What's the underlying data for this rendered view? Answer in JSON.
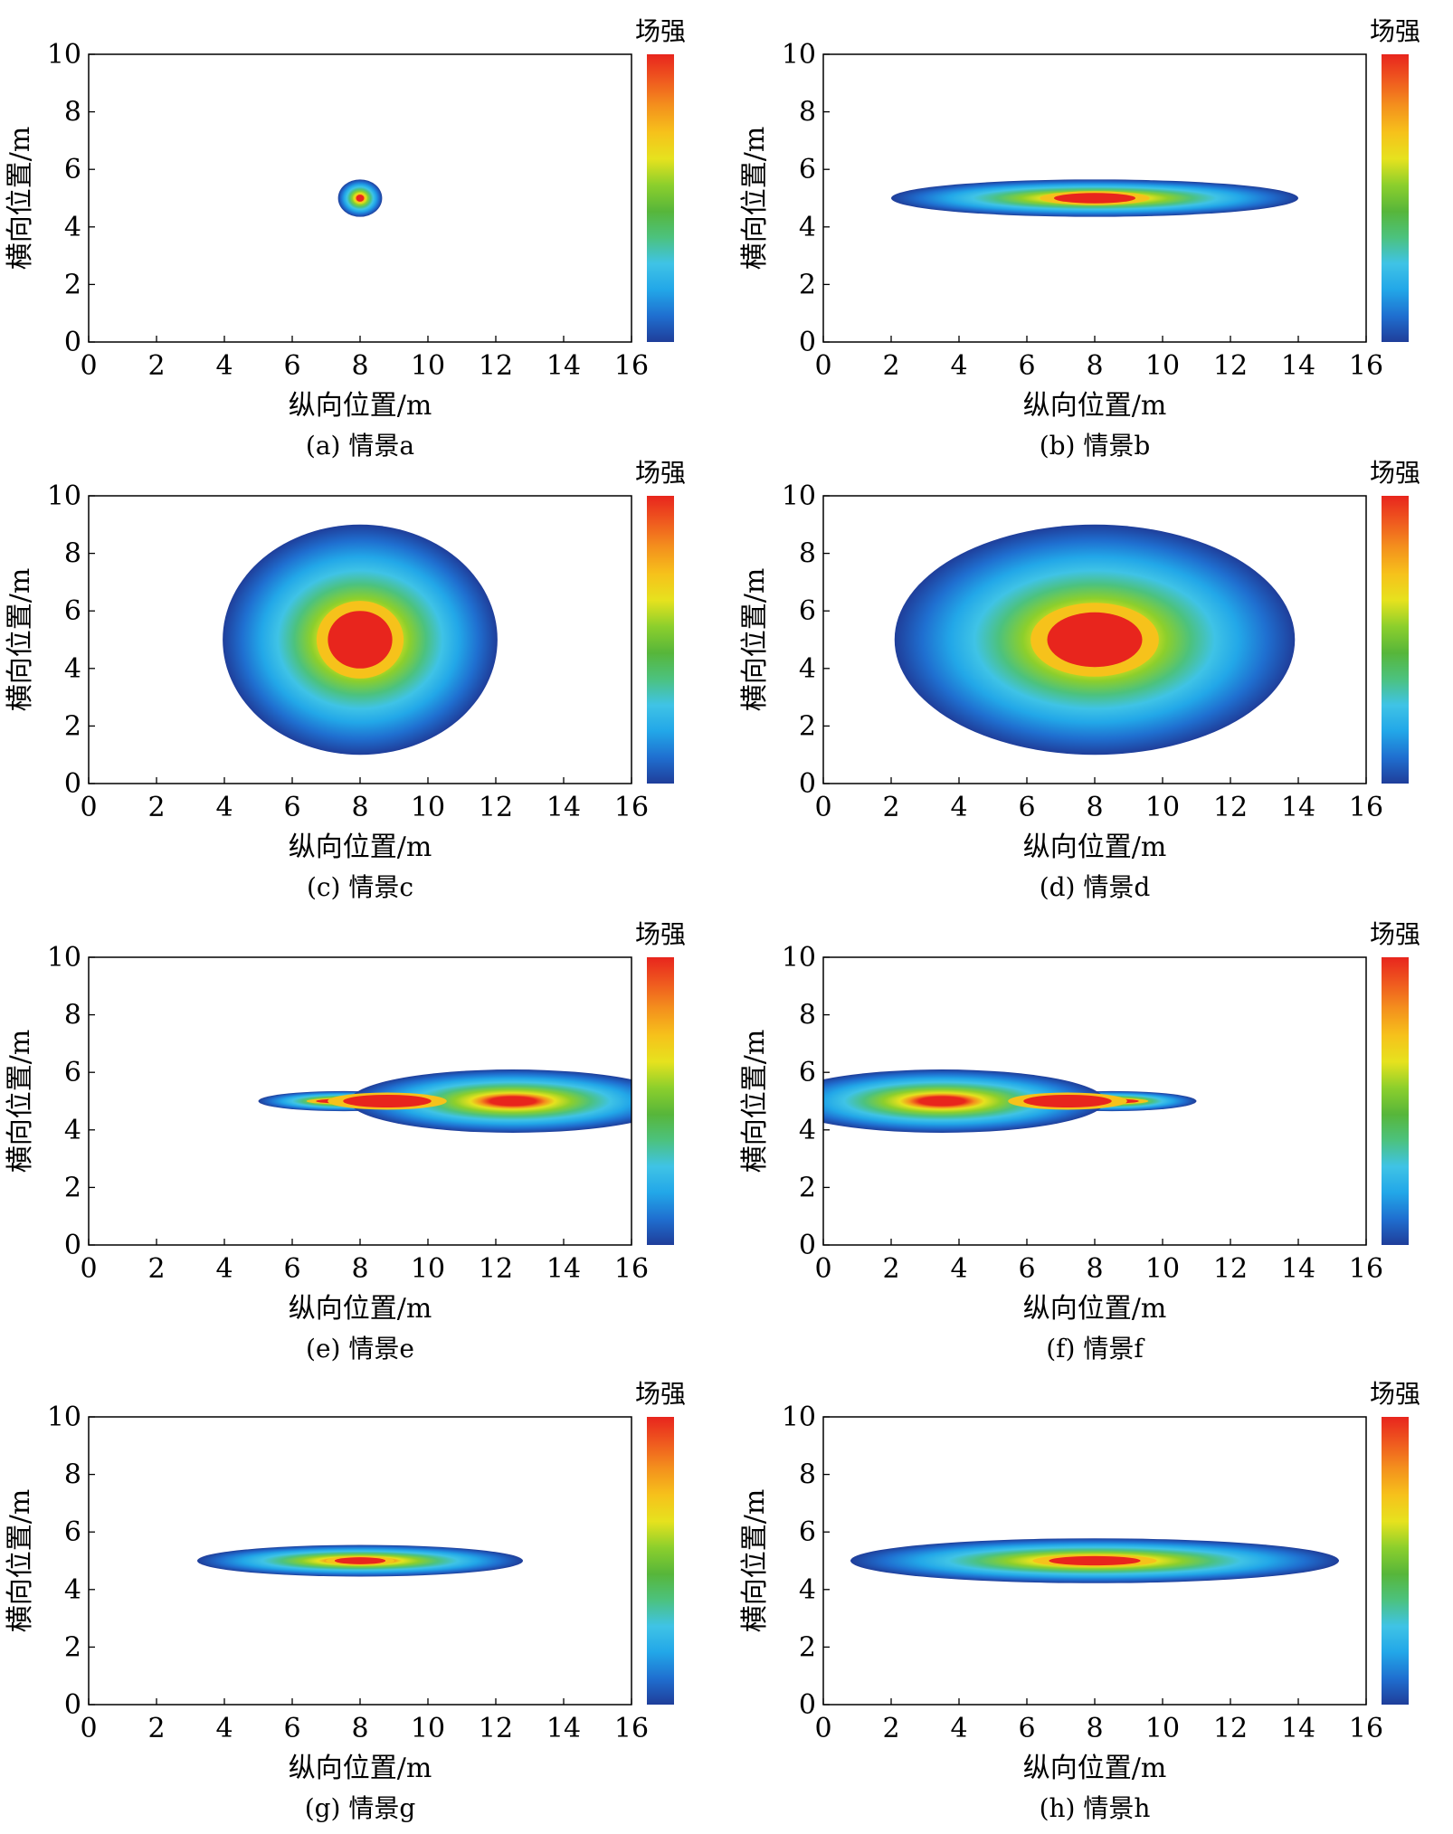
{
  "colorbar_colors": [
    "#1f3e9a",
    "#1f6fd0",
    "#22a7e8",
    "#3fc3e6",
    "#4cc27e",
    "#57b63a",
    "#8ccf2c",
    "#e6e21e",
    "#f6c21b",
    "#f4921d",
    "#ef5a1f",
    "#e8251d"
  ],
  "panels": [
    {
      "caption": "(a) 情景a",
      "xlabel": "纵向位置/m",
      "ylabel": "横向位置/m",
      "colorbar_label": "场强",
      "x_ticks": [
        "0",
        "2",
        "4",
        "6",
        "8",
        "10",
        "12",
        "14",
        "16"
      ],
      "y_ticks": [
        "0",
        "2",
        "4",
        "6",
        "8",
        "10"
      ]
    },
    {
      "caption": "(b) 情景b",
      "xlabel": "纵向位置/m",
      "ylabel": "横向位置/m",
      "colorbar_label": "场强",
      "x_ticks": [
        "0",
        "2",
        "4",
        "6",
        "8",
        "10",
        "12",
        "14",
        "16"
      ],
      "y_ticks": [
        "0",
        "2",
        "4",
        "6",
        "8",
        "10"
      ]
    },
    {
      "caption": "(c) 情景c",
      "xlabel": "纵向位置/m",
      "ylabel": "横向位置/m",
      "colorbar_label": "场强",
      "x_ticks": [
        "0",
        "2",
        "4",
        "6",
        "8",
        "10",
        "12",
        "14",
        "16"
      ],
      "y_ticks": [
        "0",
        "2",
        "4",
        "6",
        "8",
        "10"
      ]
    },
    {
      "caption": "(d) 情景d",
      "xlabel": "纵向位置/m",
      "ylabel": "横向位置/m",
      "colorbar_label": "场强",
      "x_ticks": [
        "0",
        "2",
        "4",
        "6",
        "8",
        "10",
        "12",
        "14",
        "16"
      ],
      "y_ticks": [
        "0",
        "2",
        "4",
        "6",
        "8",
        "10"
      ]
    },
    {
      "caption": "(e) 情景e",
      "xlabel": "纵向位置/m",
      "ylabel": "横向位置/m",
      "colorbar_label": "场强",
      "x_ticks": [
        "0",
        "2",
        "4",
        "6",
        "8",
        "10",
        "12",
        "14",
        "16"
      ],
      "y_ticks": [
        "0",
        "2",
        "4",
        "6",
        "8",
        "10"
      ]
    },
    {
      "caption": "(f) 情景f",
      "xlabel": "纵向位置/m",
      "ylabel": "横向位置/m",
      "colorbar_label": "场强",
      "x_ticks": [
        "0",
        "2",
        "4",
        "6",
        "8",
        "10",
        "12",
        "14",
        "16"
      ],
      "y_ticks": [
        "0",
        "2",
        "4",
        "6",
        "8",
        "10"
      ]
    },
    {
      "caption": "(g) 情景g",
      "xlabel": "纵向位置/m",
      "ylabel": "横向位置/m",
      "colorbar_label": "场强",
      "x_ticks": [
        "0",
        "2",
        "4",
        "6",
        "8",
        "10",
        "12",
        "14",
        "16"
      ],
      "y_ticks": [
        "0",
        "2",
        "4",
        "6",
        "8",
        "10"
      ]
    },
    {
      "caption": "(h) 情景h",
      "xlabel": "纵向位置/m",
      "ylabel": "横向位置/m",
      "colorbar_label": "场强",
      "x_ticks": [
        "0",
        "2",
        "4",
        "6",
        "8",
        "10",
        "12",
        "14",
        "16"
      ],
      "y_ticks": [
        "0",
        "2",
        "4",
        "6",
        "8",
        "10"
      ]
    }
  ],
  "chart_data": [
    {
      "type": "heatmap",
      "panel": "a",
      "xlim": [
        0,
        16
      ],
      "ylim": [
        0,
        10
      ],
      "regions": [
        {
          "shape": "ellipse",
          "center": [
            8,
            5
          ],
          "semi_axes": [
            0.65,
            0.65
          ],
          "peak_semi_axes": [
            0.12,
            0.12
          ]
        }
      ]
    },
    {
      "type": "heatmap",
      "panel": "b",
      "xlim": [
        0,
        16
      ],
      "ylim": [
        0,
        10
      ],
      "regions": [
        {
          "shape": "ellipse",
          "center": [
            8,
            5
          ],
          "semi_axes": [
            6,
            0.65
          ],
          "peak_semi_axes": [
            1.2,
            0.18
          ]
        }
      ]
    },
    {
      "type": "heatmap",
      "panel": "c",
      "xlim": [
        0,
        16
      ],
      "ylim": [
        0,
        10
      ],
      "regions": [
        {
          "shape": "ellipse",
          "center": [
            8,
            5
          ],
          "semi_axes": [
            4.05,
            4.0
          ],
          "peak_semi_axes": [
            0.95,
            1.0
          ]
        }
      ]
    },
    {
      "type": "heatmap",
      "panel": "d",
      "xlim": [
        0,
        16
      ],
      "ylim": [
        0,
        10
      ],
      "regions": [
        {
          "shape": "ellipse",
          "center": [
            8,
            5
          ],
          "semi_axes": [
            5.9,
            4.0
          ],
          "peak_semi_axes": [
            1.4,
            0.95
          ]
        }
      ]
    },
    {
      "type": "heatmap",
      "panel": "e",
      "xlim": [
        0,
        16
      ],
      "ylim": [
        0,
        10
      ],
      "regions": [
        {
          "shape": "ellipse",
          "center": [
            7.5,
            5
          ],
          "semi_axes": [
            2.5,
            0.35
          ],
          "peak_semi_axes": [
            0.8,
            0.08
          ]
        },
        {
          "shape": "ellipse",
          "center": [
            12.5,
            5
          ],
          "semi_axes": [
            4.8,
            1.1
          ],
          "peak_semi_axes": [
            1.3,
            0.22
          ],
          "peak_center": [
            8.8,
            5
          ]
        }
      ]
    },
    {
      "type": "heatmap",
      "panel": "f",
      "xlim": [
        0,
        16
      ],
      "ylim": [
        0,
        10
      ],
      "regions": [
        {
          "shape": "ellipse",
          "center": [
            8.5,
            5
          ],
          "semi_axes": [
            2.5,
            0.35
          ],
          "peak_semi_axes": [
            0.8,
            0.08
          ]
        },
        {
          "shape": "ellipse",
          "center": [
            3.5,
            5
          ],
          "semi_axes": [
            4.8,
            1.1
          ],
          "peak_semi_axes": [
            1.3,
            0.22
          ],
          "peak_center": [
            7.2,
            5
          ]
        }
      ]
    },
    {
      "type": "heatmap",
      "panel": "g",
      "xlim": [
        0,
        16
      ],
      "ylim": [
        0,
        10
      ],
      "regions": [
        {
          "shape": "ellipse",
          "center": [
            8,
            5
          ],
          "semi_axes": [
            4.8,
            0.55
          ],
          "peak_semi_axes": [
            0.75,
            0.12
          ]
        }
      ]
    },
    {
      "type": "heatmap",
      "panel": "h",
      "xlim": [
        0,
        16
      ],
      "ylim": [
        0,
        10
      ],
      "regions": [
        {
          "shape": "ellipse",
          "center": [
            8,
            5
          ],
          "semi_axes": [
            7.2,
            0.78
          ],
          "peak_semi_axes": [
            1.35,
            0.16
          ]
        }
      ]
    }
  ]
}
